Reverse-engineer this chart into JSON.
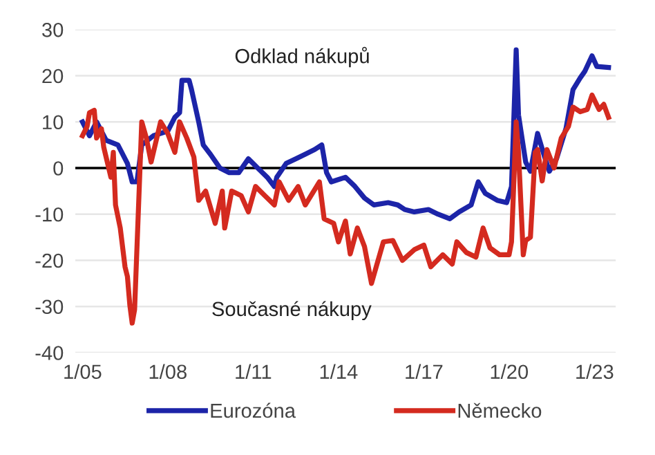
{
  "chart_data": {
    "type": "line",
    "annotations": [
      "Odklad nákupů",
      "Současné nákupy"
    ],
    "xlim": [
      "2004-10",
      "2023-10"
    ],
    "xticks": [
      {
        "value": "2005-01",
        "label": "1/05"
      },
      {
        "value": "2008-01",
        "label": "1/08"
      },
      {
        "value": "2011-01",
        "label": "1/11"
      },
      {
        "value": "2014-01",
        "label": "1/14"
      },
      {
        "value": "2017-01",
        "label": "1/17"
      },
      {
        "value": "2020-01",
        "label": "1/20"
      },
      {
        "value": "2023-01",
        "label": "1/23"
      }
    ],
    "ylim": [
      -40,
      30
    ],
    "yticks": [
      -40,
      -30,
      -20,
      -10,
      0,
      10,
      20,
      30
    ],
    "grid": "y",
    "legend": "bottom",
    "ref_lines": [
      {
        "axis": "y",
        "value": 0,
        "color": "#000000"
      }
    ],
    "series": [
      {
        "name": "Eurozóna",
        "color": "#1c24a8",
        "x": [
          "2005-01",
          "2005-04",
          "2005-07",
          "2005-11",
          "2006-04",
          "2006-08",
          "2006-10",
          "2006-12",
          "2007-02",
          "2007-07",
          "2008-01",
          "2008-04",
          "2008-06",
          "2008-07",
          "2008-10",
          "2008-11",
          "2009-02",
          "2009-04",
          "2009-07",
          "2009-11",
          "2010-03",
          "2010-07",
          "2010-11",
          "2011-03",
          "2011-07",
          "2011-10",
          "2011-11",
          "2012-03",
          "2012-07",
          "2012-11",
          "2013-03",
          "2013-06",
          "2013-08",
          "2013-10",
          "2014-04",
          "2014-08",
          "2014-12",
          "2015-04",
          "2015-10",
          "2016-02",
          "2016-05",
          "2016-09",
          "2017-03",
          "2017-07",
          "2017-12",
          "2018-04",
          "2018-09",
          "2018-12",
          "2019-03",
          "2019-08",
          "2019-12",
          "2020-02",
          "2020-04",
          "2020-05",
          "2020-08",
          "2020-10",
          "2021-01",
          "2021-04",
          "2021-06",
          "2021-09",
          "2022-01",
          "2022-04",
          "2022-07",
          "2022-09",
          "2022-12",
          "2023-02",
          "2023-07"
        ],
        "values": [
          10,
          7,
          10,
          6,
          5,
          1,
          -3,
          -3,
          5,
          7,
          8,
          11,
          12,
          19,
          19,
          17,
          10,
          5,
          3,
          0,
          -1,
          -1,
          2,
          0,
          -2,
          -4,
          -2,
          1,
          2,
          3,
          4,
          5,
          -1,
          -3,
          -2,
          -4,
          -6.5,
          -8,
          -7.5,
          -8,
          -9,
          -9.5,
          -9,
          -10,
          -11,
          -9.5,
          -8,
          -3,
          -5.5,
          -7,
          -7.5,
          -4,
          25.6,
          11.5,
          1.3,
          -0.7,
          7.5,
          2.4,
          -0.7,
          2,
          8.6,
          17,
          19.5,
          21,
          24.3,
          22,
          21.8
        ]
      },
      {
        "name": "Německo",
        "color": "#d42a1f",
        "x": [
          "2005-01",
          "2005-03",
          "2005-04",
          "2005-06",
          "2005-07",
          "2005-09",
          "2005-10",
          "2006-01",
          "2006-02",
          "2006-03",
          "2006-05",
          "2006-07",
          "2006-08",
          "2006-09",
          "2006-10",
          "2006-11",
          "2007-01",
          "2007-02",
          "2007-04",
          "2007-06",
          "2007-10",
          "2008-01",
          "2008-04",
          "2008-06",
          "2008-09",
          "2008-12",
          "2009-02",
          "2009-05",
          "2009-09",
          "2009-12",
          "2010-01",
          "2010-04",
          "2010-08",
          "2010-11",
          "2011-02",
          "2011-06",
          "2011-10",
          "2011-12",
          "2012-04",
          "2012-08",
          "2012-11",
          "2013-05",
          "2013-07",
          "2013-11",
          "2014-01",
          "2014-04",
          "2014-06",
          "2014-09",
          "2014-12",
          "2015-03",
          "2015-05",
          "2015-08",
          "2015-12",
          "2016-04",
          "2016-09",
          "2017-01",
          "2017-04",
          "2017-09",
          "2018-01",
          "2018-03",
          "2018-07",
          "2018-11",
          "2019-02",
          "2019-05",
          "2019-09",
          "2020-01",
          "2020-02",
          "2020-04",
          "2020-05",
          "2020-07",
          "2020-08",
          "2020-10",
          "2020-12",
          "2021-01",
          "2021-03",
          "2021-05",
          "2021-08",
          "2021-11",
          "2022-02",
          "2022-04",
          "2022-07",
          "2022-10",
          "2022-12",
          "2023-03",
          "2023-05",
          "2023-07"
        ],
        "values": [
          7,
          9,
          12,
          12.5,
          6.5,
          8.5,
          4.5,
          -2,
          3.4,
          -8,
          -13,
          -21.4,
          -23.5,
          -29.7,
          -33.6,
          -30.7,
          -3.8,
          10,
          6.5,
          1.3,
          10,
          7.5,
          3.4,
          10,
          6.5,
          2.4,
          -7,
          -5,
          -12,
          -5,
          -13,
          -5,
          -6,
          -9.5,
          -4,
          -6,
          -8,
          -3,
          -7,
          -4,
          -8,
          -3,
          -11,
          -12,
          -16,
          -11.5,
          -18.6,
          -13,
          -17,
          -25,
          -21.4,
          -16,
          -15.7,
          -20,
          -17.7,
          -16.7,
          -21.4,
          -18.8,
          -20.8,
          -16,
          -18.3,
          -19.3,
          -13,
          -17.3,
          -18.8,
          -18.8,
          -16,
          10,
          3.4,
          -18.8,
          -15.7,
          -15,
          3.4,
          4,
          -2.8,
          4,
          0,
          6.5,
          9,
          13.2,
          12.2,
          12.7,
          15.8,
          12.7,
          13.8,
          11
        ]
      }
    ]
  }
}
